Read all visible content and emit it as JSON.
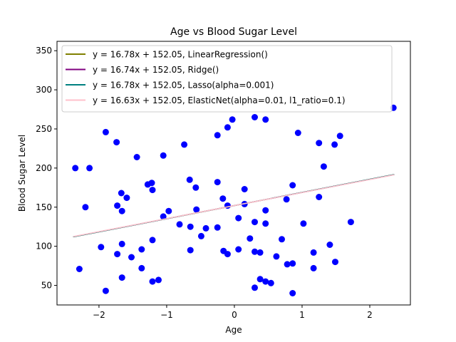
{
  "chart_data": {
    "type": "scatter",
    "title": "Age vs Blood Sugar Level",
    "xlabel": "Age",
    "ylabel": "Blood Sugar Level",
    "xlim": [
      -2.62,
      2.6
    ],
    "ylim": [
      25,
      362
    ],
    "xticks": [
      -2,
      -1,
      0,
      1,
      2
    ],
    "yticks": [
      50,
      100,
      150,
      200,
      250,
      300,
      350
    ],
    "grid": false,
    "legend_position": "upper-left",
    "point_color": "#0000ff",
    "points": [
      {
        "x": -2.35,
        "y": 200
      },
      {
        "x": -2.29,
        "y": 71
      },
      {
        "x": -2.2,
        "y": 150
      },
      {
        "x": -2.14,
        "y": 200
      },
      {
        "x": -1.97,
        "y": 99
      },
      {
        "x": -1.9,
        "y": 246
      },
      {
        "x": -1.9,
        "y": 43
      },
      {
        "x": -1.74,
        "y": 233
      },
      {
        "x": -1.73,
        "y": 152
      },
      {
        "x": -1.73,
        "y": 90
      },
      {
        "x": -1.67,
        "y": 168
      },
      {
        "x": -1.66,
        "y": 145
      },
      {
        "x": -1.66,
        "y": 103
      },
      {
        "x": -1.66,
        "y": 60
      },
      {
        "x": -1.59,
        "y": 162
      },
      {
        "x": -1.52,
        "y": 86
      },
      {
        "x": -1.44,
        "y": 214
      },
      {
        "x": -1.37,
        "y": 96
      },
      {
        "x": -1.37,
        "y": 72
      },
      {
        "x": -1.28,
        "y": 179
      },
      {
        "x": -1.22,
        "y": 181
      },
      {
        "x": -1.21,
        "y": 172
      },
      {
        "x": -1.21,
        "y": 108
      },
      {
        "x": -1.21,
        "y": 55
      },
      {
        "x": -1.12,
        "y": 57
      },
      {
        "x": -1.05,
        "y": 216
      },
      {
        "x": -1.05,
        "y": 138
      },
      {
        "x": -0.97,
        "y": 145
      },
      {
        "x": -0.81,
        "y": 128
      },
      {
        "x": -0.74,
        "y": 230
      },
      {
        "x": -0.66,
        "y": 185
      },
      {
        "x": -0.65,
        "y": 125
      },
      {
        "x": -0.65,
        "y": 95
      },
      {
        "x": -0.57,
        "y": 175
      },
      {
        "x": -0.56,
        "y": 147
      },
      {
        "x": -0.49,
        "y": 113
      },
      {
        "x": -0.42,
        "y": 123
      },
      {
        "x": -0.25,
        "y": 242
      },
      {
        "x": -0.25,
        "y": 182
      },
      {
        "x": -0.25,
        "y": 124
      },
      {
        "x": -0.17,
        "y": 161
      },
      {
        "x": -0.16,
        "y": 94
      },
      {
        "x": -0.1,
        "y": 252
      },
      {
        "x": -0.1,
        "y": 152
      },
      {
        "x": -0.1,
        "y": 90
      },
      {
        "x": -0.03,
        "y": 262
      },
      {
        "x": 0.06,
        "y": 136
      },
      {
        "x": 0.06,
        "y": 96
      },
      {
        "x": 0.15,
        "y": 173
      },
      {
        "x": 0.15,
        "y": 154
      },
      {
        "x": 0.23,
        "y": 110
      },
      {
        "x": 0.3,
        "y": 265
      },
      {
        "x": 0.3,
        "y": 131
      },
      {
        "x": 0.3,
        "y": 93
      },
      {
        "x": 0.3,
        "y": 47
      },
      {
        "x": 0.38,
        "y": 92
      },
      {
        "x": 0.38,
        "y": 58
      },
      {
        "x": 0.46,
        "y": 262
      },
      {
        "x": 0.46,
        "y": 146
      },
      {
        "x": 0.46,
        "y": 129
      },
      {
        "x": 0.46,
        "y": 55
      },
      {
        "x": 0.54,
        "y": 53
      },
      {
        "x": 0.62,
        "y": 87
      },
      {
        "x": 0.7,
        "y": 109
      },
      {
        "x": 0.77,
        "y": 160
      },
      {
        "x": 0.78,
        "y": 77
      },
      {
        "x": 0.86,
        "y": 178
      },
      {
        "x": 0.86,
        "y": 78
      },
      {
        "x": 0.86,
        "y": 40
      },
      {
        "x": 0.94,
        "y": 245
      },
      {
        "x": 1.02,
        "y": 129
      },
      {
        "x": 1.17,
        "y": 92
      },
      {
        "x": 1.17,
        "y": 72
      },
      {
        "x": 1.25,
        "y": 232
      },
      {
        "x": 1.25,
        "y": 163
      },
      {
        "x": 1.32,
        "y": 202
      },
      {
        "x": 1.41,
        "y": 102
      },
      {
        "x": 1.48,
        "y": 230
      },
      {
        "x": 1.49,
        "y": 80
      },
      {
        "x": 1.56,
        "y": 241
      },
      {
        "x": 1.72,
        "y": 131
      },
      {
        "x": 2.35,
        "y": 277
      }
    ],
    "series": [
      {
        "name": "y = 16.78x + 152.05, LinearRegression()",
        "color": "#808000",
        "slope": 16.78,
        "intercept": 152.05
      },
      {
        "name": "y = 16.74x + 152.05, Ridge()",
        "color": "#800080",
        "slope": 16.74,
        "intercept": 152.05
      },
      {
        "name": "y = 16.78x + 152.05, Lasso(alpha=0.001)",
        "color": "#008080",
        "slope": 16.78,
        "intercept": 152.05
      },
      {
        "name": "y = 16.63x + 152.05, ElasticNet(alpha=0.01, l1_ratio=0.1)",
        "color": "#ffc0cb",
        "slope": 16.63,
        "intercept": 152.05
      }
    ],
    "fit_x_range": [
      -2.38,
      2.36
    ]
  }
}
